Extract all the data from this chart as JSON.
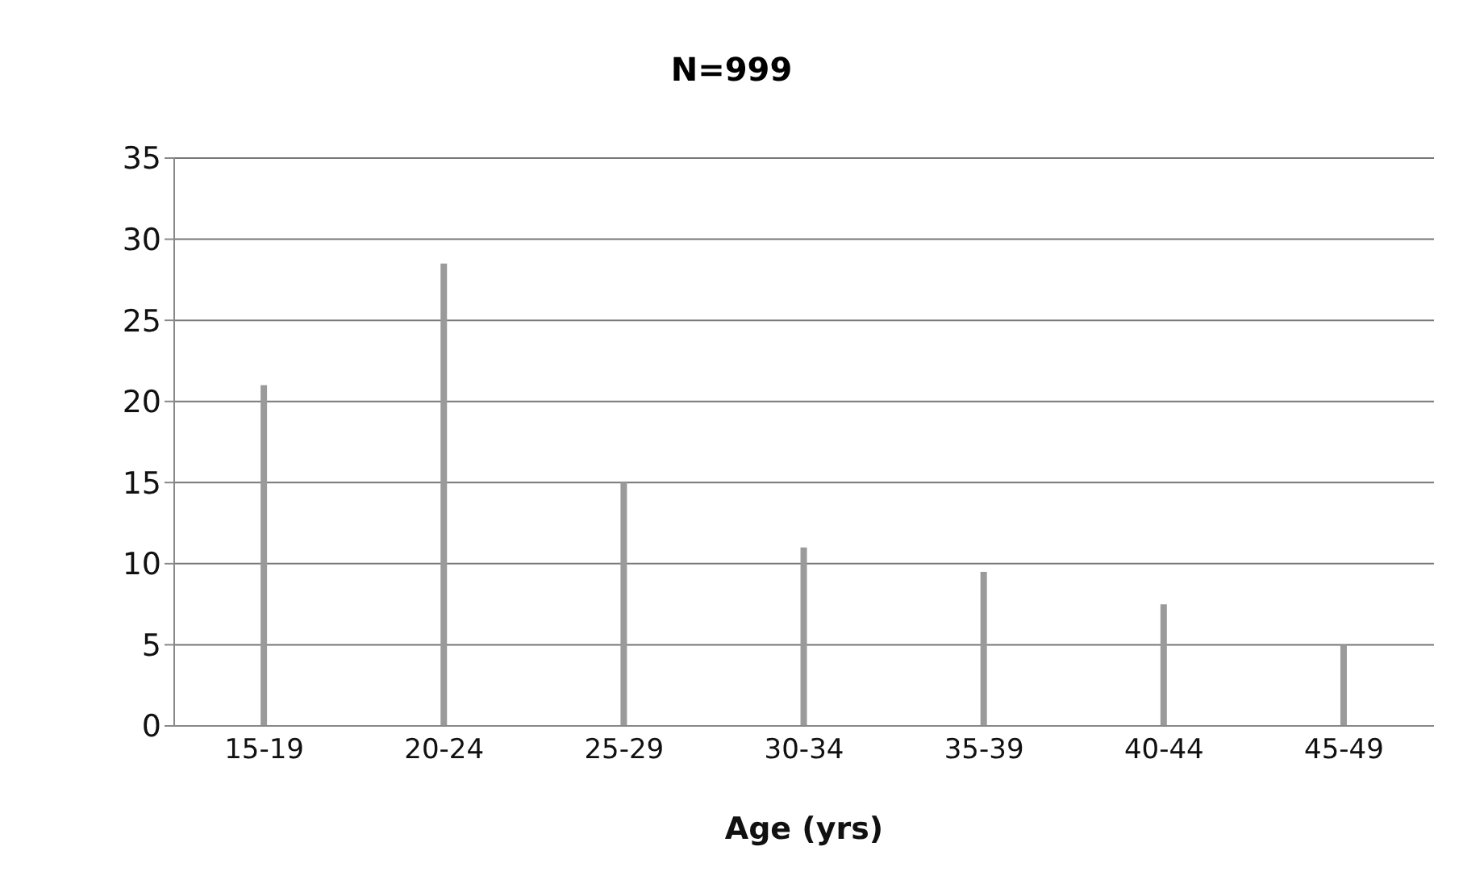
{
  "chart_data": {
    "type": "bar",
    "title": "N=999",
    "xlabel": "Age (yrs)",
    "categories": [
      "15-19",
      "20-24",
      "25-29",
      "30-34",
      "35-39",
      "40-44",
      "45-49"
    ],
    "values": [
      21,
      28.5,
      15,
      11,
      9.5,
      7.5,
      5
    ],
    "color": "#9a9a9a",
    "ylim": [
      0,
      35
    ],
    "yticks": [
      0,
      5,
      10,
      15,
      20,
      25,
      30,
      35
    ],
    "grid": "y"
  }
}
